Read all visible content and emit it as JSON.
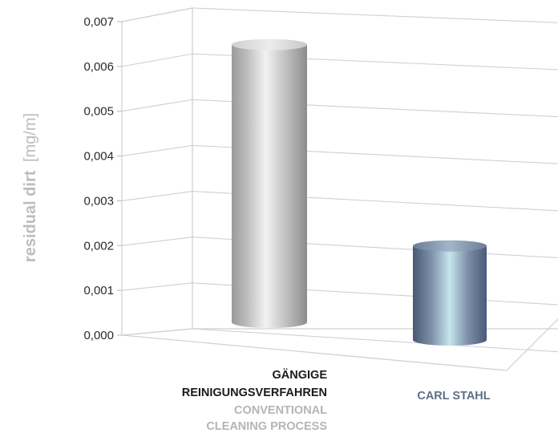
{
  "chart_data": {
    "type": "bar",
    "ylabel": {
      "main": "residual dirt",
      "unit": "[mg/m]"
    },
    "ylim": [
      0,
      0.007
    ],
    "yticks": [
      "0,000",
      "0,001",
      "0,002",
      "0,003",
      "0,004",
      "0,005",
      "0,006",
      "0,007"
    ],
    "grid": true,
    "bars": [
      {
        "label_lines": [
          "GÄNGIGE",
          "REINIGUNGSVERFAHREN"
        ],
        "sublabel_lines": [
          "CONVENTIONAL",
          "CLEANING PROCESS"
        ],
        "value": 0.0062,
        "color": "#b8b8b8"
      },
      {
        "label_lines": [
          "CARL STAHL"
        ],
        "sublabel_lines": [],
        "value": 0.0021,
        "color": "#7f90a8"
      }
    ],
    "label_colors": {
      "primary": "#1a1a1a",
      "secondary": "#b5b5b5",
      "accent": "#5e6f88"
    }
  }
}
